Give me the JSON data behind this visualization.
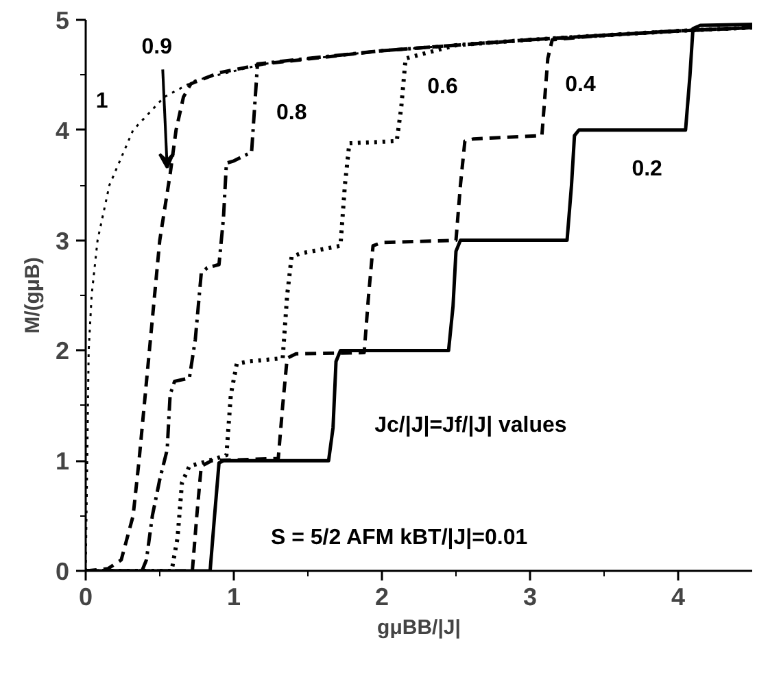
{
  "chart_data": {
    "type": "line",
    "xlabel": "gμBB/|J|",
    "ylabel": "M/(gμB)",
    "xlim": [
      0,
      4.5
    ],
    "ylim": [
      0,
      5
    ],
    "xticks": [
      0,
      1,
      2,
      3,
      4
    ],
    "yticks": [
      0,
      1,
      2,
      3,
      4,
      5
    ],
    "grid": false,
    "marker": "none",
    "annotations": [
      "Jc/|J|=Jf/|J| values",
      "S = 5/2 AFM   kBT/|J|=0.01"
    ],
    "series": [
      {
        "name": "1",
        "color": "#000000",
        "line_style": "dotted",
        "x": [
          0,
          0.005,
          0.01,
          0.02,
          0.04,
          0.08,
          0.16,
          0.32,
          0.53,
          0.74,
          1.2,
          2,
          3,
          4,
          4.5
        ],
        "values": [
          0,
          0.5,
          1,
          2,
          2.5,
          3,
          3.5,
          4,
          4.3,
          4.45,
          4.6,
          4.72,
          4.82,
          4.9,
          4.93
        ]
      },
      {
        "name": "0.9",
        "color": "#000000",
        "line_style": "dashed",
        "x": [
          0,
          0.15,
          0.24,
          0.32,
          0.36,
          0.43,
          0.5,
          0.57,
          0.61,
          0.66,
          0.71,
          0.9,
          1.2,
          2,
          3,
          4,
          4.5
        ],
        "values": [
          0,
          0.02,
          0.1,
          0.5,
          1,
          2,
          3,
          3.6,
          4,
          4.3,
          4.42,
          4.52,
          4.6,
          4.72,
          4.82,
          4.9,
          4.93
        ]
      },
      {
        "name": "0.8",
        "color": "#000000",
        "line_style": "dashdot",
        "x": [
          0,
          0.38,
          0.41,
          0.45,
          0.5,
          0.55,
          0.57,
          0.6,
          0.7,
          0.74,
          0.78,
          0.82,
          0.9,
          0.93,
          0.95,
          1.0,
          1.12,
          1.14,
          1.16,
          1.5,
          2,
          3,
          4,
          4.5
        ],
        "values": [
          0,
          0,
          0.1,
          0.5,
          0.83,
          1.1,
          1.6,
          1.72,
          1.75,
          2.1,
          2.7,
          2.75,
          2.78,
          3.2,
          3.7,
          3.72,
          3.8,
          4.2,
          4.6,
          4.65,
          4.72,
          4.82,
          4.9,
          4.93
        ]
      },
      {
        "name": "0.6",
        "color": "#000000",
        "line_style": "dotted",
        "x": [
          0,
          0.58,
          0.62,
          0.65,
          0.7,
          0.78,
          0.95,
          0.98,
          1.02,
          1.1,
          1.33,
          1.36,
          1.39,
          1.45,
          1.72,
          1.75,
          1.78,
          2.1,
          2.13,
          2.16,
          2.5,
          3,
          4,
          4.5
        ],
        "values": [
          0,
          0,
          0.3,
          0.8,
          0.95,
          0.98,
          1.05,
          1.6,
          1.88,
          1.9,
          1.93,
          2.5,
          2.85,
          2.88,
          2.95,
          3.5,
          3.88,
          3.9,
          4.2,
          4.65,
          4.77,
          4.82,
          4.9,
          4.93
        ]
      },
      {
        "name": "0.4",
        "color": "#000000",
        "line_style": "dashed",
        "x": [
          0,
          0.72,
          0.75,
          0.78,
          0.85,
          1.3,
          1.33,
          1.36,
          1.42,
          1.88,
          1.91,
          1.94,
          2.0,
          2.5,
          2.53,
          2.56,
          2.62,
          3.08,
          3.1,
          3.12,
          3.15,
          3.5,
          4,
          4.5
        ],
        "values": [
          0,
          0,
          0.5,
          0.95,
          1,
          1.02,
          1.5,
          1.93,
          1.97,
          1.98,
          2.5,
          2.95,
          2.98,
          3.0,
          3.5,
          3.9,
          3.92,
          3.95,
          4.3,
          4.65,
          4.82,
          4.86,
          4.9,
          4.93
        ]
      },
      {
        "name": "0.2",
        "color": "#000000",
        "line_style": "solid",
        "x": [
          0,
          0.84,
          0.87,
          0.9,
          0.93,
          1.64,
          1.67,
          1.69,
          1.72,
          2.45,
          2.48,
          2.5,
          2.53,
          3.25,
          3.28,
          3.3,
          3.33,
          4.05,
          4.08,
          4.1,
          4.15,
          4.5
        ],
        "values": [
          0,
          0,
          0.5,
          0.98,
          1,
          1,
          1.3,
          1.9,
          2,
          2,
          2.4,
          2.9,
          3,
          3,
          3.5,
          3.95,
          4,
          4,
          4.5,
          4.92,
          4.95,
          4.96
        ]
      }
    ]
  }
}
